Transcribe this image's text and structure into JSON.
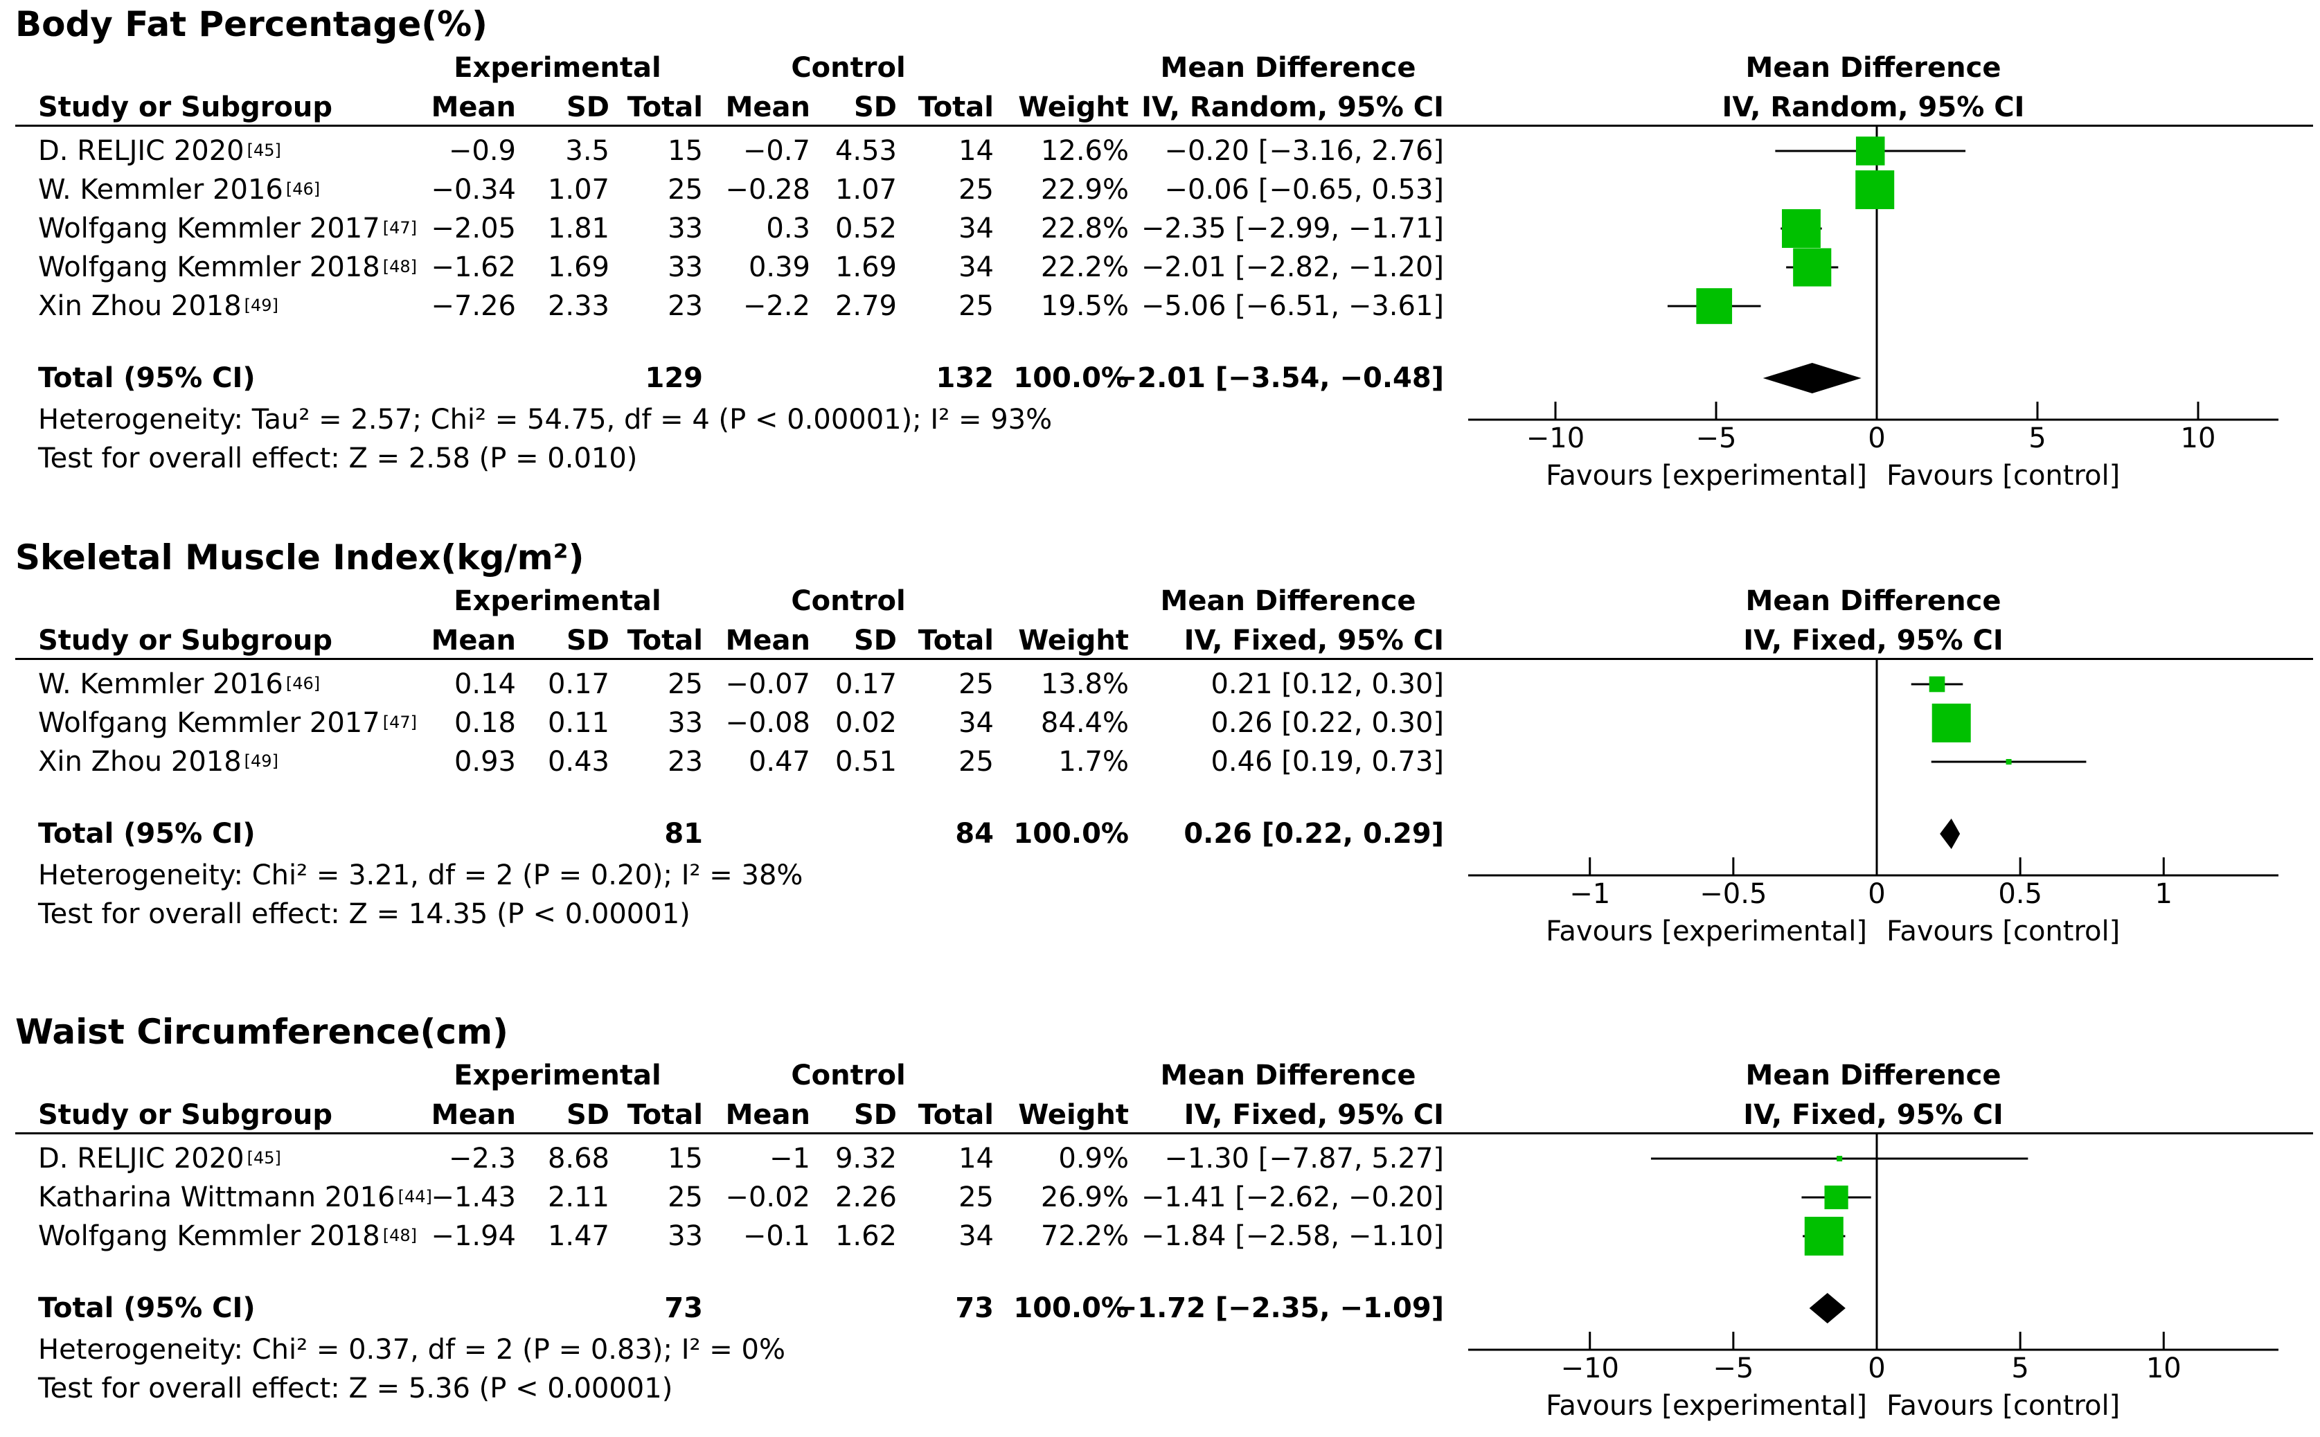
{
  "labels": {
    "experimental": "Experimental",
    "control": "Control",
    "study": "Study or Subgroup",
    "mean": "Mean",
    "sd": "SD",
    "total": "Total",
    "weight": "Weight",
    "md": "Mean Difference",
    "favours_left": "Favours [experimental]",
    "favours_right": "Favours [control]"
  },
  "colors": {
    "square": "#00c000",
    "diamond": "#000000",
    "line": "#000000"
  },
  "chart_data": [
    {
      "type": "forest",
      "title": "Body Fat Percentage(%)",
      "method": "IV, Random, 95% CI",
      "xlim": [
        -12.5,
        12.5
      ],
      "ticks": [
        -10,
        -5,
        0,
        5,
        10
      ],
      "tick_labels": [
        "−10",
        "−5",
        "0",
        "5",
        "10"
      ],
      "studies": [
        {
          "name": "D. RELJIC 2020",
          "ref": "[45]",
          "e_mean": "−0.9",
          "e_sd": "3.5",
          "e_total": "15",
          "c_mean": "−0.7",
          "c_sd": "4.53",
          "c_total": "14",
          "weight": "12.6%",
          "ci_text": "−0.20 [−3.16, 2.76]",
          "md": -0.2,
          "lo": -3.16,
          "hi": 2.76,
          "w": 12.6
        },
        {
          "name": "W. Kemmler 2016",
          "ref": "[46]",
          "e_mean": "−0.34",
          "e_sd": "1.07",
          "e_total": "25",
          "c_mean": "−0.28",
          "c_sd": "1.07",
          "c_total": "25",
          "weight": "22.9%",
          "ci_text": "−0.06 [−0.65, 0.53]",
          "md": -0.06,
          "lo": -0.65,
          "hi": 0.53,
          "w": 22.9
        },
        {
          "name": "Wolfgang Kemmler 2017",
          "ref": "[47]",
          "e_mean": "−2.05",
          "e_sd": "1.81",
          "e_total": "33",
          "c_mean": "0.3",
          "c_sd": "0.52",
          "c_total": "34",
          "weight": "22.8%",
          "ci_text": "−2.35 [−2.99, −1.71]",
          "md": -2.35,
          "lo": -2.99,
          "hi": -1.71,
          "w": 22.8
        },
        {
          "name": "Wolfgang Kemmler 2018",
          "ref": "[48]",
          "e_mean": "−1.62",
          "e_sd": "1.69",
          "e_total": "33",
          "c_mean": "0.39",
          "c_sd": "1.69",
          "c_total": "34",
          "weight": "22.2%",
          "ci_text": "−2.01 [−2.82, −1.20]",
          "md": -2.01,
          "lo": -2.82,
          "hi": -1.2,
          "w": 22.2
        },
        {
          "name": "Xin Zhou 2018",
          "ref": "[49]",
          "e_mean": "−7.26",
          "e_sd": "2.33",
          "e_total": "23",
          "c_mean": "−2.2",
          "c_sd": "2.79",
          "c_total": "25",
          "weight": "19.5%",
          "ci_text": "−5.06 [−6.51, −3.61]",
          "md": -5.06,
          "lo": -6.51,
          "hi": -3.61,
          "w": 19.5
        }
      ],
      "total": {
        "label": "Total (95% CI)",
        "e_total": "129",
        "c_total": "132",
        "weight": "100.0%",
        "ci_text": "−2.01 [−3.54, −0.48]",
        "md": -2.01,
        "lo": -3.54,
        "hi": -0.48
      },
      "heterogeneity": "Heterogeneity: Tau² = 2.57; Chi² = 54.75, df = 4 (P < 0.00001); I² = 93%",
      "overall": "Test for overall effect: Z = 2.58 (P = 0.010)"
    },
    {
      "type": "forest",
      "title": "Skeletal Muscle Index(kg/m²)",
      "method": "IV, Fixed, 95% CI",
      "xlim": [
        -1.4,
        1.4
      ],
      "ticks": [
        -1,
        -0.5,
        0,
        0.5,
        1
      ],
      "tick_labels": [
        "−1",
        "−0.5",
        "0",
        "0.5",
        "1"
      ],
      "studies": [
        {
          "name": "W. Kemmler 2016",
          "ref": "[46]",
          "e_mean": "0.14",
          "e_sd": "0.17",
          "e_total": "25",
          "c_mean": "−0.07",
          "c_sd": "0.17",
          "c_total": "25",
          "weight": "13.8%",
          "ci_text": "0.21 [0.12, 0.30]",
          "md": 0.21,
          "lo": 0.12,
          "hi": 0.3,
          "w": 13.8
        },
        {
          "name": "Wolfgang Kemmler 2017",
          "ref": "[47]",
          "e_mean": "0.18",
          "e_sd": "0.11",
          "e_total": "33",
          "c_mean": "−0.08",
          "c_sd": "0.02",
          "c_total": "34",
          "weight": "84.4%",
          "ci_text": "0.26 [0.22, 0.30]",
          "md": 0.26,
          "lo": 0.22,
          "hi": 0.3,
          "w": 84.4
        },
        {
          "name": "Xin Zhou 2018",
          "ref": "[49]",
          "e_mean": "0.93",
          "e_sd": "0.43",
          "e_total": "23",
          "c_mean": "0.47",
          "c_sd": "0.51",
          "c_total": "25",
          "weight": "1.7%",
          "ci_text": "0.46 [0.19, 0.73]",
          "md": 0.46,
          "lo": 0.19,
          "hi": 0.73,
          "w": 1.7
        }
      ],
      "total": {
        "label": "Total (95% CI)",
        "e_total": "81",
        "c_total": "84",
        "weight": "100.0%",
        "ci_text": "0.26 [0.22, 0.29]",
        "md": 0.26,
        "lo": 0.22,
        "hi": 0.29
      },
      "heterogeneity": "Heterogeneity: Chi² = 3.21, df = 2 (P = 0.20); I² = 38%",
      "overall": "Test for overall effect: Z = 14.35 (P < 0.00001)"
    },
    {
      "type": "forest",
      "title": "Waist Circumference(cm)",
      "method": "IV, Fixed, 95% CI",
      "xlim": [
        -14,
        14
      ],
      "ticks": [
        -10,
        -5,
        0,
        5,
        10
      ],
      "tick_labels": [
        "−10",
        "−5",
        "0",
        "5",
        "10"
      ],
      "studies": [
        {
          "name": "D. RELJIC 2020",
          "ref": "[45]",
          "e_mean": "−2.3",
          "e_sd": "8.68",
          "e_total": "15",
          "c_mean": "−1",
          "c_sd": "9.32",
          "c_total": "14",
          "weight": "0.9%",
          "ci_text": "−1.30 [−7.87, 5.27]",
          "md": -1.3,
          "lo": -7.87,
          "hi": 5.27,
          "w": 0.9
        },
        {
          "name": "Katharina Wittmann 2016",
          "ref": "[44]",
          "e_mean": "−1.43",
          "e_sd": "2.11",
          "e_total": "25",
          "c_mean": "−0.02",
          "c_sd": "2.26",
          "c_total": "25",
          "weight": "26.9%",
          "ci_text": "−1.41 [−2.62, −0.20]",
          "md": -1.41,
          "lo": -2.62,
          "hi": -0.2,
          "w": 26.9
        },
        {
          "name": "Wolfgang Kemmler 2018",
          "ref": "[48]",
          "e_mean": "−1.94",
          "e_sd": "1.47",
          "e_total": "33",
          "c_mean": "−0.1",
          "c_sd": "1.62",
          "c_total": "34",
          "weight": "72.2%",
          "ci_text": "−1.84 [−2.58, −1.10]",
          "md": -1.84,
          "lo": -2.58,
          "hi": -1.1,
          "w": 72.2
        }
      ],
      "total": {
        "label": "Total (95% CI)",
        "e_total": "73",
        "c_total": "73",
        "weight": "100.0%",
        "ci_text": "−1.72 [−2.35, −1.09]",
        "md": -1.72,
        "lo": -2.35,
        "hi": -1.09
      },
      "heterogeneity": "Heterogeneity: Chi² = 0.37, df = 2 (P = 0.83); I² = 0%",
      "overall": "Test for overall effect: Z = 5.36 (P < 0.00001)"
    }
  ]
}
